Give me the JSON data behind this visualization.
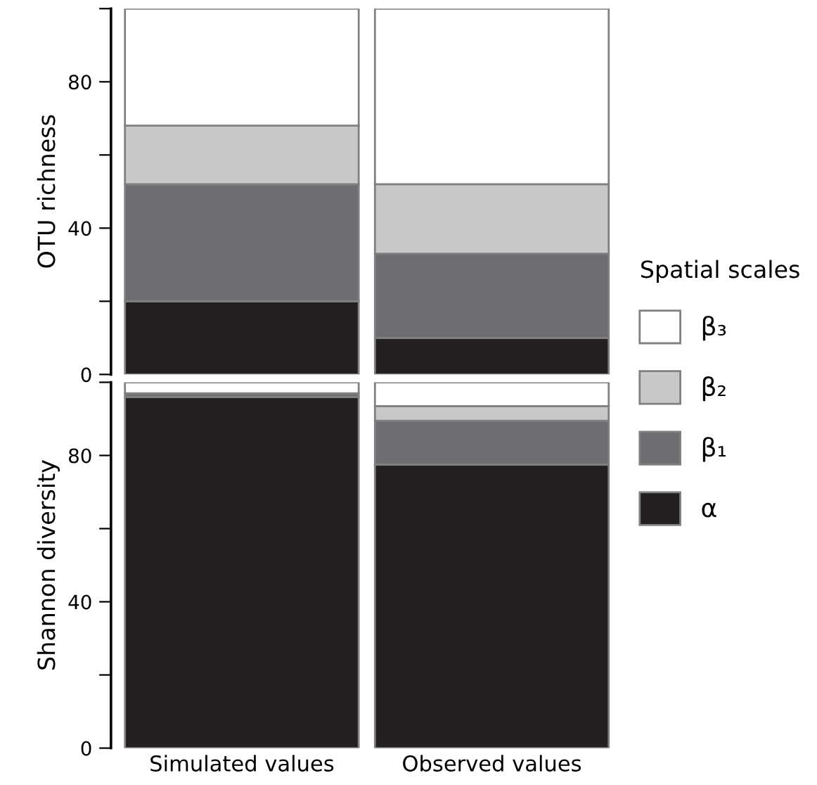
{
  "chart_data": [
    {
      "type": "bar",
      "stacked": true,
      "ylabel": "OTU richness",
      "categories": [
        null,
        null
      ],
      "ylim": [
        0,
        100
      ],
      "yticks": [
        0,
        {
          "value": 20,
          "label": null
        },
        40,
        {
          "value": 60,
          "label": null
        },
        80,
        {
          "value": 100,
          "label": null
        }
      ],
      "tick_labels": "y",
      "legend": "right",
      "legend_title": "Spatial scales",
      "grid": false,
      "series": [
        {
          "name": "α",
          "color": "#231f20",
          "values": [
            20,
            10
          ]
        },
        {
          "name": "β₁",
          "color": "#6d6e71",
          "values": [
            32,
            23
          ]
        },
        {
          "name": "β₂",
          "color": "#c7c8ca",
          "values": [
            16,
            19
          ]
        },
        {
          "name": "β₃",
          "color": "#ffffff",
          "values": [
            32,
            48
          ]
        }
      ]
    },
    {
      "type": "bar",
      "stacked": true,
      "ylabel": "Shannon diversity",
      "categories": [
        "Simulated values",
        "Observed values"
      ],
      "ylim": [
        0,
        100
      ],
      "yticks": [
        0,
        {
          "value": 20,
          "label": null
        },
        40,
        {
          "value": 60,
          "label": null
        },
        80,
        {
          "value": 100,
          "label": null
        }
      ],
      "grid": false,
      "series": [
        {
          "color": "#231f20",
          "values": [
            96,
            77.5
          ]
        },
        {
          "color": "#6d6e71",
          "values": [
            1,
            12
          ]
        },
        {
          "color": "#c7c8ca",
          "values": [
            null,
            4
          ]
        },
        {
          "color": "#ffffff",
          "values": [
            3,
            6.5
          ]
        }
      ]
    }
  ]
}
